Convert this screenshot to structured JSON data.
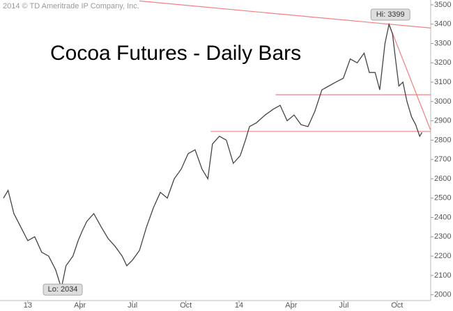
{
  "chart_data": {
    "type": "line",
    "title": "Cocoa Futures - Daily Bars",
    "copyright": "2014 © TD Ameritrade IP Company, Inc.",
    "x": [
      -42,
      -34,
      -24,
      -12,
      0,
      12,
      24,
      36,
      48,
      58,
      66,
      78,
      87,
      94,
      102,
      114,
      127,
      139,
      151,
      163,
      171,
      181,
      193,
      205,
      217,
      229,
      241,
      253,
      265,
      277,
      289,
      301,
      311,
      319,
      331,
      343,
      355,
      367,
      376,
      383,
      395,
      410,
      424,
      436,
      448,
      460,
      472,
      484,
      496,
      508,
      520,
      532,
      545,
      557,
      569,
      581,
      590,
      600,
      608,
      617,
      624,
      630,
      636,
      641,
      648,
      655,
      663,
      670,
      677,
      681
    ],
    "series": [
      {
        "name": "Cocoa",
        "color": "#444444",
        "values": [
          2500,
          2540,
          2420,
          2350,
          2280,
          2300,
          2220,
          2200,
          2130,
          2034,
          2150,
          2200,
          2280,
          2330,
          2380,
          2420,
          2350,
          2290,
          2250,
          2200,
          2150,
          2180,
          2230,
          2350,
          2450,
          2530,
          2500,
          2600,
          2650,
          2730,
          2750,
          2650,
          2600,
          2780,
          2820,
          2800,
          2680,
          2720,
          2800,
          2870,
          2890,
          2930,
          2960,
          2980,
          2900,
          2930,
          2880,
          2870,
          2950,
          3060,
          3080,
          3100,
          3120,
          3220,
          3200,
          3250,
          3150,
          3150,
          3060,
          3300,
          3399,
          3350,
          3200,
          3080,
          3100,
          3000,
          2920,
          2880,
          2820,
          2840
        ]
      }
    ],
    "xlim": [
      -48,
      696
    ],
    "ylim": [
      1970,
      3525
    ],
    "xticks": [
      {
        "value": 0,
        "label": "13"
      },
      {
        "value": 90,
        "label": "Apr"
      },
      {
        "value": 181,
        "label": "Jul"
      },
      {
        "value": 273,
        "label": "Oct"
      },
      {
        "value": 365,
        "label": "14"
      },
      {
        "value": 455,
        "label": "Apr"
      },
      {
        "value": 546,
        "label": "Jul"
      },
      {
        "value": 638,
        "label": "Oct"
      }
    ],
    "yticks": [
      2000,
      2100,
      2200,
      2300,
      2400,
      2500,
      2600,
      2700,
      2800,
      2900,
      3000,
      3100,
      3200,
      3300,
      3400,
      3500
    ],
    "annotations": [
      {
        "text": "Lo: 2034",
        "x": 58,
        "y": 2034
      },
      {
        "text": "Hi: 3399",
        "x": 624,
        "y": 3399
      }
    ],
    "trend_lines": [
      {
        "color": "#f08080",
        "x": [
          193,
          696
        ],
        "y": [
          3520,
          3380
        ]
      },
      {
        "color": "#f08080",
        "x": [
          624,
          696
        ],
        "y": [
          3399,
          2850
        ]
      },
      {
        "color": "#f08080",
        "x": [
          428,
          696
        ],
        "y": [
          3035,
          3035
        ]
      },
      {
        "color": "#f08080",
        "x": [
          316,
          696
        ],
        "y": [
          2845,
          2845
        ]
      }
    ]
  }
}
